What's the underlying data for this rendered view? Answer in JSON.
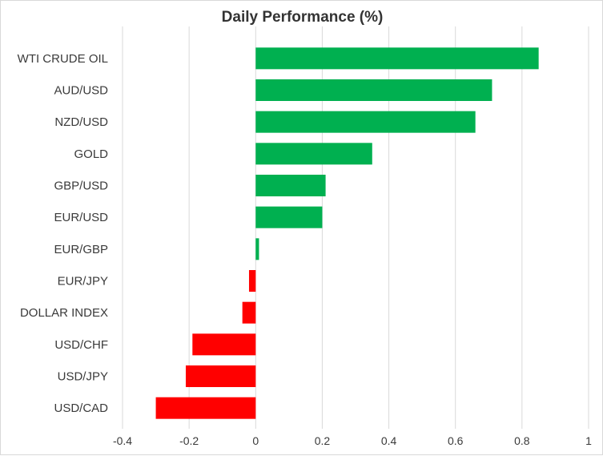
{
  "chart_data": {
    "type": "bar",
    "orientation": "horizontal",
    "title": "Daily Performance (%)",
    "xlabel": "",
    "ylabel": "",
    "xlim": [
      -0.4,
      1
    ],
    "grid": true,
    "legend": "none",
    "x_ticks": [
      "-0.4",
      "-0.2",
      "0",
      "0.2",
      "0.4",
      "0.6",
      "0.8",
      "1"
    ],
    "categories": [
      "WTI CRUDE OIL",
      "AUD/USD",
      "NZD/USD",
      "GOLD",
      "GBP/USD",
      "EUR/USD",
      "EUR/GBP",
      "EUR/JPY",
      "DOLLAR INDEX",
      "USD/CHF",
      "USD/JPY",
      "USD/CAD"
    ],
    "values": [
      0.85,
      0.71,
      0.66,
      0.35,
      0.21,
      0.2,
      0.01,
      -0.02,
      -0.04,
      -0.19,
      -0.21,
      -0.3
    ],
    "colors": {
      "positive": "#00b050",
      "negative": "#ff0000",
      "grid": "#d9d9d9"
    }
  }
}
